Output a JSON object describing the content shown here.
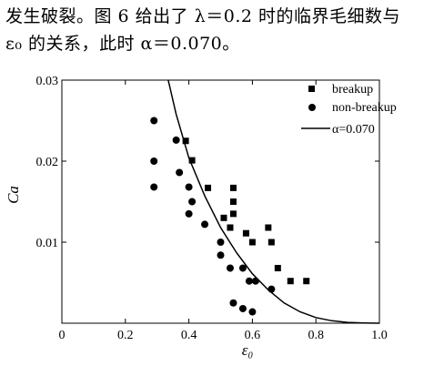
{
  "paragraph": {
    "line1": "发生破裂。图 6 给出了 λ＝0.2 时的临界毛细数与",
    "line2": "ε₀ 的关系，此时 α＝0.070。"
  },
  "chart_data": {
    "type": "scatter",
    "xlabel": "ε₀",
    "ylabel": "Ca",
    "xlim": [
      0,
      1.0
    ],
    "ylim": [
      0,
      0.03
    ],
    "x_ticks": [
      "0",
      "0.2",
      "0.4",
      "0.6",
      "0.8",
      "1.0"
    ],
    "y_ticks": [
      "0.01",
      "0.02",
      "0.03"
    ],
    "legend": {
      "placement": "top-right",
      "entries": [
        "breakup",
        "non-breakup",
        "α=0.070"
      ]
    },
    "series": [
      {
        "name": "breakup",
        "marker": "square",
        "points": [
          [
            0.39,
            0.0225
          ],
          [
            0.41,
            0.0201
          ],
          [
            0.46,
            0.0167
          ],
          [
            0.51,
            0.013
          ],
          [
            0.54,
            0.0167
          ],
          [
            0.54,
            0.015
          ],
          [
            0.54,
            0.0135
          ],
          [
            0.53,
            0.0118
          ],
          [
            0.58,
            0.0111
          ],
          [
            0.6,
            0.01
          ],
          [
            0.65,
            0.0118
          ],
          [
            0.66,
            0.01
          ],
          [
            0.68,
            0.0068
          ],
          [
            0.72,
            0.0052
          ],
          [
            0.77,
            0.0052
          ]
        ]
      },
      {
        "name": "non-breakup",
        "marker": "circle",
        "points": [
          [
            0.29,
            0.025
          ],
          [
            0.29,
            0.02
          ],
          [
            0.29,
            0.0168
          ],
          [
            0.36,
            0.0226
          ],
          [
            0.37,
            0.0186
          ],
          [
            0.4,
            0.0168
          ],
          [
            0.41,
            0.015
          ],
          [
            0.4,
            0.0135
          ],
          [
            0.45,
            0.0122
          ],
          [
            0.5,
            0.01
          ],
          [
            0.5,
            0.0084
          ],
          [
            0.53,
            0.0068
          ],
          [
            0.57,
            0.0068
          ],
          [
            0.59,
            0.0052
          ],
          [
            0.61,
            0.0052
          ],
          [
            0.66,
            0.0042
          ],
          [
            0.54,
            0.0025
          ],
          [
            0.57,
            0.0018
          ],
          [
            0.6,
            0.0014
          ]
        ]
      },
      {
        "name": "α=0.070",
        "type": "line",
        "curve_points": [
          [
            0.335,
            0.03
          ],
          [
            0.36,
            0.0258
          ],
          [
            0.4,
            0.0204
          ],
          [
            0.45,
            0.0157
          ],
          [
            0.5,
            0.0118
          ],
          [
            0.55,
            0.0087
          ],
          [
            0.6,
            0.0061
          ],
          [
            0.65,
            0.0041
          ],
          [
            0.7,
            0.0025
          ],
          [
            0.75,
            0.0014
          ],
          [
            0.8,
            0.0007
          ],
          [
            0.85,
            0.0003
          ],
          [
            0.9,
            0.0001
          ],
          [
            0.95,
            3e-05
          ],
          [
            1.0,
            0.0
          ]
        ]
      }
    ]
  }
}
